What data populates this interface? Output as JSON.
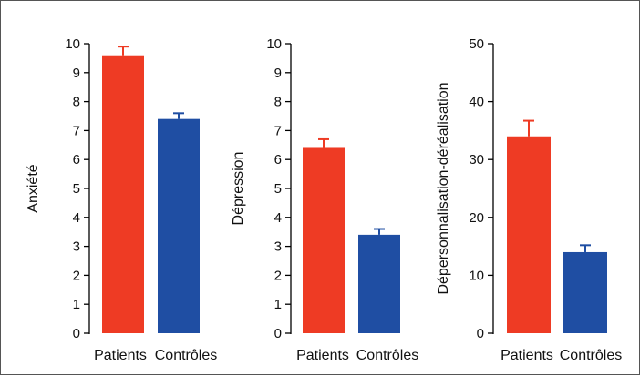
{
  "chart_data": [
    {
      "type": "bar",
      "categories": [
        "Patients",
        "Contrôles"
      ],
      "values": [
        9.6,
        7.4
      ],
      "errors": [
        0.3,
        0.2
      ],
      "ylabel": "Anxiété",
      "ylim": [
        0,
        10
      ],
      "yticks": [
        0,
        1,
        2,
        3,
        4,
        5,
        6,
        7,
        8,
        9,
        10
      ],
      "colors": [
        "#ee3b24",
        "#1f4ea3"
      ],
      "grid": false,
      "legend": "none"
    },
    {
      "type": "bar",
      "categories": [
        "Patients",
        "Contrôles"
      ],
      "values": [
        6.4,
        3.4
      ],
      "errors": [
        0.3,
        0.2
      ],
      "ylabel": "Dépression",
      "ylim": [
        0,
        10
      ],
      "yticks": [
        0,
        1,
        2,
        3,
        4,
        5,
        6,
        7,
        8,
        9,
        10
      ],
      "colors": [
        "#ee3b24",
        "#1f4ea3"
      ],
      "grid": false,
      "legend": "none"
    },
    {
      "type": "bar",
      "categories": [
        "Patients",
        "Contrôles"
      ],
      "values": [
        34,
        14
      ],
      "errors": [
        2.7,
        1.2
      ],
      "ylabel": "Dépersonnalisation-déréalisation",
      "ylim": [
        0,
        50
      ],
      "yticks": [
        0,
        10,
        20,
        30,
        40,
        50
      ],
      "colors": [
        "#ee3b24",
        "#1f4ea3"
      ],
      "grid": false,
      "legend": "none"
    }
  ]
}
